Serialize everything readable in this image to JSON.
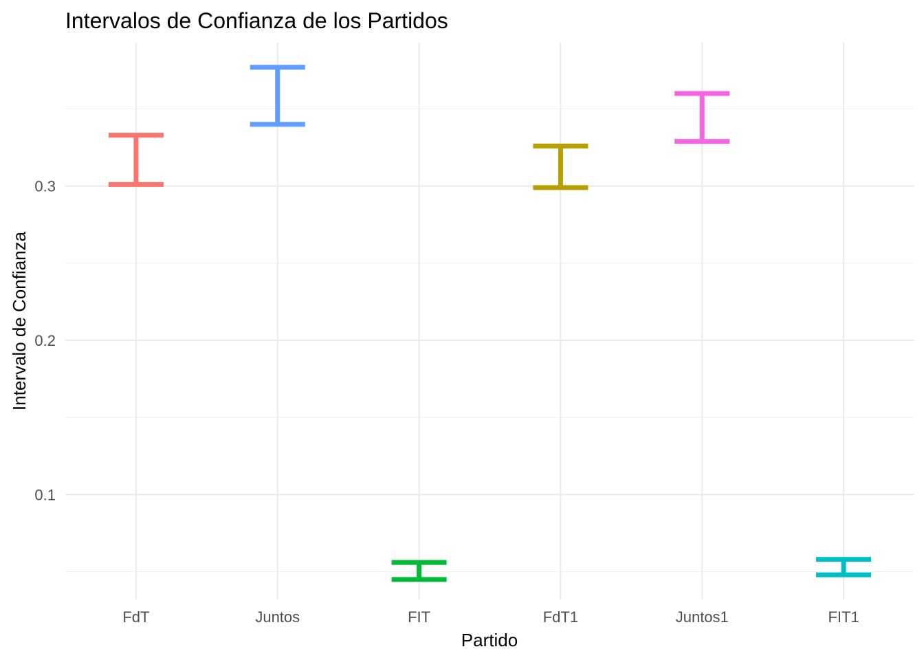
{
  "chart_data": {
    "type": "errorbar",
    "title": "Intervalos de Confianza de los Partidos",
    "xlabel": "Partido",
    "ylabel": "Intervalo de Confianza",
    "categories": [
      "FdT",
      "Juntos",
      "FIT",
      "FdT1",
      "Juntos1",
      "FIT1"
    ],
    "lower": [
      0.301,
      0.34,
      0.045,
      0.299,
      0.329,
      0.048
    ],
    "upper": [
      0.333,
      0.377,
      0.056,
      0.326,
      0.36,
      0.058
    ],
    "colors": [
      "#F8766D",
      "#619CFF",
      "#00BA38",
      "#B79F00",
      "#F564E3",
      "#00BFC4"
    ],
    "ylim": [
      0.032,
      0.393
    ],
    "yticks": [
      0.1,
      0.2,
      0.3
    ],
    "ytick_labels": [
      "0.1",
      "0.2",
      "0.3"
    ],
    "yminor": [
      0.05,
      0.15,
      0.25,
      0.35
    ],
    "grid": true,
    "legend": "none"
  }
}
